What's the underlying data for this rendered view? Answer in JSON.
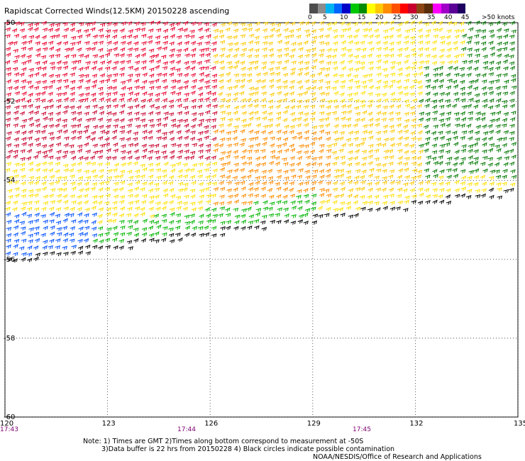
{
  "title": "Rapidscat Corrected Winds(12.5KM) 20150228 ascending",
  "colorbar": {
    "colors": [
      "#4d4d4d",
      "#8c8c8c",
      "#00b4f0",
      "#0064ff",
      "#0000c8",
      "#00c800",
      "#008c00",
      "#ffff00",
      "#ffc800",
      "#ff8c00",
      "#ff5000",
      "#ff0000",
      "#c8002d",
      "#8b4513",
      "#5a2d0a",
      "#ff00ff",
      "#a000c8",
      "#5a0096",
      "#1e0060"
    ],
    "labels": [
      "0",
      "5",
      "10",
      "15",
      "20",
      "25",
      "30",
      "35",
      "40",
      "45",
      ">50 knots"
    ]
  },
  "map": {
    "lon_ticks": [
      "120",
      "123",
      "126",
      "129",
      "132",
      "135"
    ],
    "lat_ticks": [
      "-50",
      "-52",
      "-54",
      "-56",
      "-58",
      "-60"
    ],
    "lon_range": [
      120,
      135
    ],
    "lat_range": [
      -60,
      -50
    ],
    "grid": true
  },
  "times": [
    "17:43",
    "17:44",
    "17:45"
  ],
  "notes": [
    "Note: 1) Times are GMT 2)Times along bottom correspond to measurement at -50S",
    "3)Data buffer is 22 hrs from 20150228 4) Black circles indicate possible contamination",
    "NOAA/NESDIS/Office of Research and Applications"
  ]
}
